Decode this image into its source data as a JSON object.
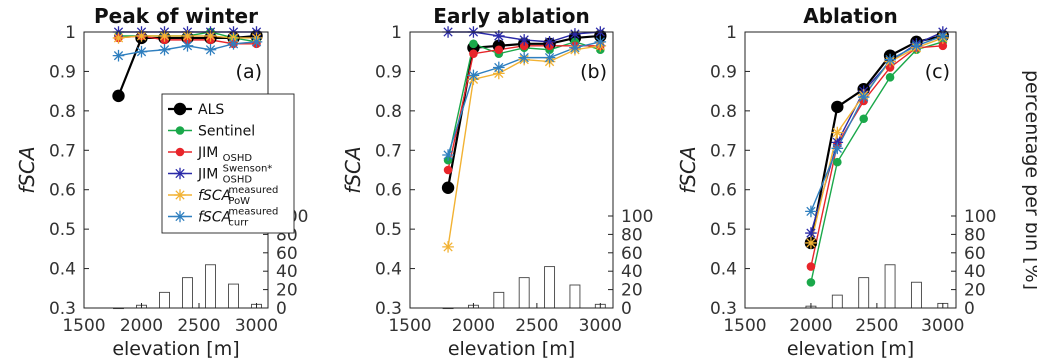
{
  "colors": {
    "ALS": "#000000",
    "Sentinel": "#1aa84a",
    "JIM_OSHD": "#e8252a",
    "JIM_Swenson": "#2a2aa8",
    "fSCA_PoW": "#f2b233",
    "fSCA_curr": "#2f7fbf",
    "hist": "#444444"
  },
  "legend": [
    {
      "key": "ALS",
      "base": "ALS",
      "sup": "",
      "sub": "",
      "italic": false,
      "marker": "dot-big",
      "color": "#000000"
    },
    {
      "key": "Sentinel",
      "base": "Sentinel",
      "sup": "",
      "sub": "",
      "italic": false,
      "marker": "dot",
      "color": "#1aa84a"
    },
    {
      "key": "JIM_OSHD",
      "base": "JIM",
      "sup": "",
      "sub": "OSHD",
      "italic": false,
      "marker": "dot",
      "color": "#e8252a"
    },
    {
      "key": "JIM_Swenson",
      "base": "JIM",
      "sup": "Swenson*",
      "sub": "OSHD",
      "italic": false,
      "marker": "star",
      "color": "#2a2aa8"
    },
    {
      "key": "fSCA_PoW",
      "base": "fSCA",
      "sup": "measured",
      "sub": "PoW",
      "italic": true,
      "marker": "star",
      "color": "#f2b233"
    },
    {
      "key": "fSCA_curr",
      "base": "fSCA",
      "sup": "measured",
      "sub": "curr",
      "italic": true,
      "marker": "star",
      "color": "#2f7fbf"
    }
  ],
  "chart_data": [
    {
      "type": "line",
      "title": "Peak of winter",
      "panel_label": "(a)",
      "xlabel": "elevation [m]",
      "ylabel": "fSCA",
      "y2label": "",
      "xlim": [
        1500,
        3100
      ],
      "ylim": [
        0.3,
        1.0
      ],
      "xticks": [
        1500,
        2000,
        2500,
        3000
      ],
      "yticks": [
        0.3,
        0.4,
        0.5,
        0.6,
        0.7,
        0.8,
        0.9,
        1
      ],
      "y2lim": [
        0,
        300
      ],
      "y2ticks": [
        0,
        20,
        40,
        60,
        80,
        100
      ],
      "x": [
        1800,
        2000,
        2200,
        2400,
        2600,
        2800,
        3000
      ],
      "series": [
        {
          "key": "ALS",
          "values": [
            0.838,
            0.985,
            0.985,
            0.985,
            0.985,
            0.985,
            0.99
          ]
        },
        {
          "key": "Sentinel",
          "values": [
            0.99,
            0.99,
            0.99,
            0.99,
            1.0,
            0.985,
            0.975
          ]
        },
        {
          "key": "JIM_OSHD",
          "values": [
            0.985,
            0.99,
            0.98,
            0.98,
            0.98,
            0.97,
            0.97
          ]
        },
        {
          "key": "JIM_Swenson",
          "values": [
            1.0,
            1.0,
            1.0,
            1.0,
            1.0,
            1.0,
            1.0
          ]
        },
        {
          "key": "fSCA_PoW",
          "values": [
            0.985,
            0.99,
            0.99,
            0.99,
            0.99,
            0.985,
            0.985
          ]
        },
        {
          "key": "fSCA_curr",
          "values": [
            0.94,
            0.95,
            0.955,
            0.965,
            0.955,
            0.97,
            0.975
          ]
        }
      ],
      "bins": {
        "x": [
          1800,
          2000,
          2200,
          2400,
          2600,
          2800,
          3000
        ],
        "values": [
          0,
          3,
          17,
          33,
          47,
          26,
          4
        ]
      }
    },
    {
      "type": "line",
      "title": "Early ablation",
      "panel_label": "(b)",
      "xlabel": "elevation [m]",
      "ylabel": "fSCA",
      "y2label": "",
      "xlim": [
        1500,
        3100
      ],
      "ylim": [
        0.3,
        1.0
      ],
      "xticks": [
        1500,
        2000,
        2500,
        3000
      ],
      "yticks": [
        0.3,
        0.4,
        0.5,
        0.6,
        0.7,
        0.8,
        0.9,
        1
      ],
      "y2lim": [
        0,
        300
      ],
      "y2ticks": [
        0,
        20,
        40,
        60,
        80,
        100
      ],
      "x": [
        1800,
        2000,
        2200,
        2400,
        2600,
        2800,
        3000
      ],
      "series": [
        {
          "key": "ALS",
          "values": [
            0.605,
            0.96,
            0.965,
            0.97,
            0.97,
            0.985,
            0.99
          ]
        },
        {
          "key": "Sentinel",
          "values": [
            0.675,
            0.97,
            0.945,
            0.96,
            0.955,
            0.975,
            0.955
          ]
        },
        {
          "key": "JIM_OSHD",
          "values": [
            0.65,
            0.945,
            0.955,
            0.965,
            0.965,
            0.965,
            0.965
          ]
        },
        {
          "key": "JIM_Swenson",
          "values": [
            1.0,
            1.0,
            0.99,
            0.98,
            0.975,
            0.995,
            1.0
          ]
        },
        {
          "key": "fSCA_PoW",
          "values": [
            0.455,
            0.88,
            0.895,
            0.93,
            0.925,
            0.955,
            0.965
          ]
        },
        {
          "key": "fSCA_curr",
          "values": [
            0.688,
            0.89,
            0.91,
            0.935,
            0.935,
            0.96,
            0.975
          ]
        }
      ],
      "bins": {
        "x": [
          1800,
          2000,
          2200,
          2400,
          2600,
          2800,
          3000
        ],
        "values": [
          0,
          3,
          17,
          33,
          45,
          25,
          4
        ]
      }
    },
    {
      "type": "line",
      "title": "Ablation",
      "panel_label": "(c)",
      "xlabel": "elevation [m]",
      "ylabel": "fSCA",
      "y2label": "percentage per bin [%]",
      "xlim": [
        1500,
        3100
      ],
      "ylim": [
        0.3,
        1.0
      ],
      "xticks": [
        1500,
        2000,
        2500,
        3000
      ],
      "yticks": [
        0.3,
        0.4,
        0.5,
        0.6,
        0.7,
        0.8,
        0.9,
        1
      ],
      "y2lim": [
        0,
        300
      ],
      "y2ticks": [
        0,
        20,
        40,
        60,
        80,
        100
      ],
      "x": [
        2000,
        2200,
        2400,
        2600,
        2800,
        3000
      ],
      "series": [
        {
          "key": "ALS",
          "values": [
            0.465,
            0.81,
            0.855,
            0.94,
            0.975,
            0.99
          ]
        },
        {
          "key": "Sentinel",
          "values": [
            0.365,
            0.67,
            0.78,
            0.885,
            0.955,
            0.975
          ]
        },
        {
          "key": "JIM_OSHD",
          "values": [
            0.405,
            0.715,
            0.825,
            0.91,
            0.96,
            0.965
          ]
        },
        {
          "key": "JIM_Swenson",
          "values": [
            0.49,
            0.72,
            0.85,
            0.925,
            0.97,
            1.0
          ]
        },
        {
          "key": "fSCA_PoW",
          "values": [
            0.465,
            0.745,
            0.84,
            0.925,
            0.96,
            0.985
          ]
        },
        {
          "key": "fSCA_curr",
          "values": [
            0.545,
            0.705,
            0.835,
            0.93,
            0.965,
            0.99
          ]
        }
      ],
      "bins": {
        "x": [
          2000,
          2200,
          2400,
          2600,
          2800,
          3000
        ],
        "values": [
          2,
          14,
          33,
          47,
          28,
          5
        ]
      }
    }
  ]
}
